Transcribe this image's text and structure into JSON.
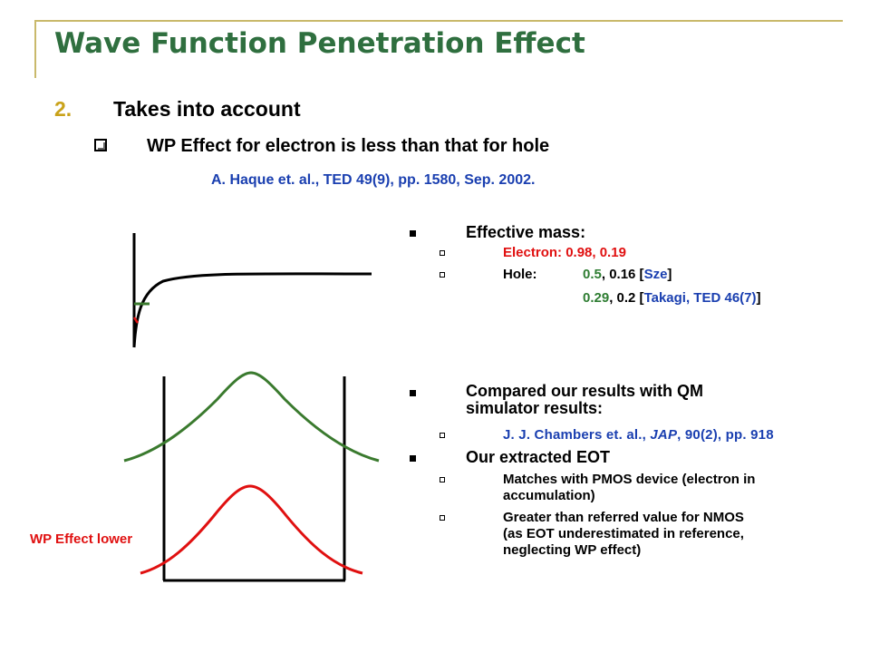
{
  "slide": {
    "title": "Wave Function Penetration Effect",
    "point_number": "2.",
    "point_text": "Takes into account",
    "sub_point": "WP Effect for electron is less than that for hole",
    "citation": "A. Haque et. al., TED 49(9), pp. 1580, Sep. 2002."
  },
  "right_panel": {
    "effective_mass_heading": "Effective mass:",
    "electron_label": "Electron:",
    "electron_values": "0.98, 0.19",
    "hole_label": "Hole:",
    "hole_values_a1": "0.5",
    "hole_values_a2": ", 0.16 [",
    "hole_ref_a": "Sze",
    "hole_values_a3": "]",
    "hole_values_b": "0.29",
    "hole_values_b2": ", 0.2 [",
    "hole_ref_b": "Takagi, TED 46(7)",
    "hole_values_b3": "]",
    "compared_line1": "Compared our results with QM",
    "compared_line2": "simulator results:",
    "ref_pre": "J. J. Chambers et. al., ",
    "ref_jap": "JAP",
    "ref_post": ", 90(2), pp. 918",
    "eot_heading": "Our extracted EOT",
    "eot_1_line1": "Matches with PMOS device (electron in",
    "eot_1_line2": "accumulation)",
    "eot_2_line1": "Greater than referred value for NMOS",
    "eot_2_line2": "(as EOT underestimated in reference,",
    "eot_2_line3": "neglecting WP effect)"
  },
  "diagram": {
    "wp_label": "WP Effect lower",
    "colors": {
      "hole": "#3a7a2e",
      "electron": "#e01010",
      "line": "#000000"
    }
  }
}
